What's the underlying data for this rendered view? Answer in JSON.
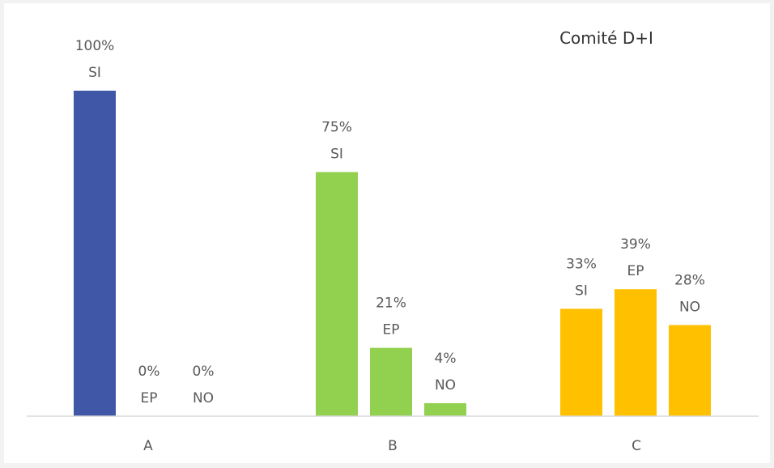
{
  "chart_data": {
    "type": "bar",
    "title": "Comité D+I",
    "xlabel": "",
    "ylabel": "",
    "ylim": [
      0,
      100
    ],
    "grid": false,
    "legend": "none",
    "categories": [
      "A",
      "B",
      "C"
    ],
    "groups": [
      {
        "category": "A",
        "color": "#4057A7",
        "bars": [
          {
            "value": 100,
            "label_value": "100%",
            "label_name": "SI"
          },
          {
            "value": 0,
            "label_value": "0%",
            "label_name": "EP"
          },
          {
            "value": 0,
            "label_value": "0%",
            "label_name": "NO"
          }
        ]
      },
      {
        "category": "B",
        "color": "#92D050",
        "bars": [
          {
            "value": 75,
            "label_value": "75%",
            "label_name": "SI"
          },
          {
            "value": 21,
            "label_value": "21%",
            "label_name": "EP"
          },
          {
            "value": 4,
            "label_value": "4%",
            "label_name": "NO"
          }
        ]
      },
      {
        "category": "C",
        "color": "#FFC000",
        "bars": [
          {
            "value": 33,
            "label_value": "33%",
            "label_name": "SI"
          },
          {
            "value": 39,
            "label_value": "39%",
            "label_name": "EP"
          },
          {
            "value": 28,
            "label_value": "28%",
            "label_name": "NO"
          }
        ]
      }
    ],
    "axis_color": "#d9d9d9",
    "label_color": "#595959"
  }
}
